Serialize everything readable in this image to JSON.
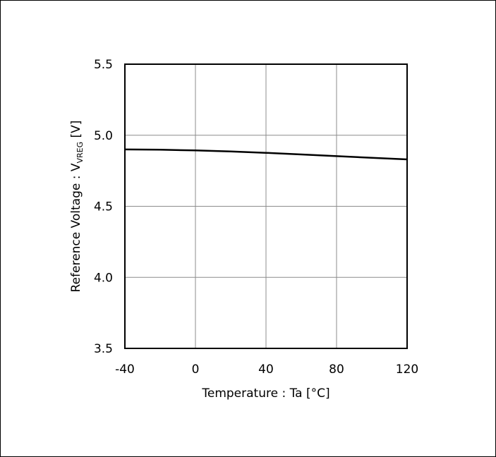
{
  "chart_data": {
    "type": "line",
    "title": "",
    "xlabel": "Temperature : Ta [°C]",
    "ylabel": {
      "prefix": "Reference Voltage : V",
      "subscript": "VREG",
      "suffix": " [V]"
    },
    "xlim": [
      -40,
      120
    ],
    "ylim": [
      3.5,
      5.5
    ],
    "xticks": [
      -40,
      0,
      40,
      80,
      120
    ],
    "yticks": [
      3.5,
      4.0,
      4.5,
      5.0,
      5.5
    ],
    "xtick_labels": [
      "-40",
      "0",
      "40",
      "80",
      "120"
    ],
    "ytick_labels": [
      "3.5",
      "4.0",
      "4.5",
      "5.0",
      "5.5"
    ],
    "grid": true,
    "legend": "none",
    "series": [
      {
        "color": "#000000",
        "x": [
          -40,
          -20,
          0,
          20,
          40,
          60,
          80,
          100,
          120
        ],
        "y": [
          4.9,
          4.898,
          4.893,
          4.886,
          4.876,
          4.865,
          4.853,
          4.841,
          4.83
        ]
      }
    ]
  }
}
